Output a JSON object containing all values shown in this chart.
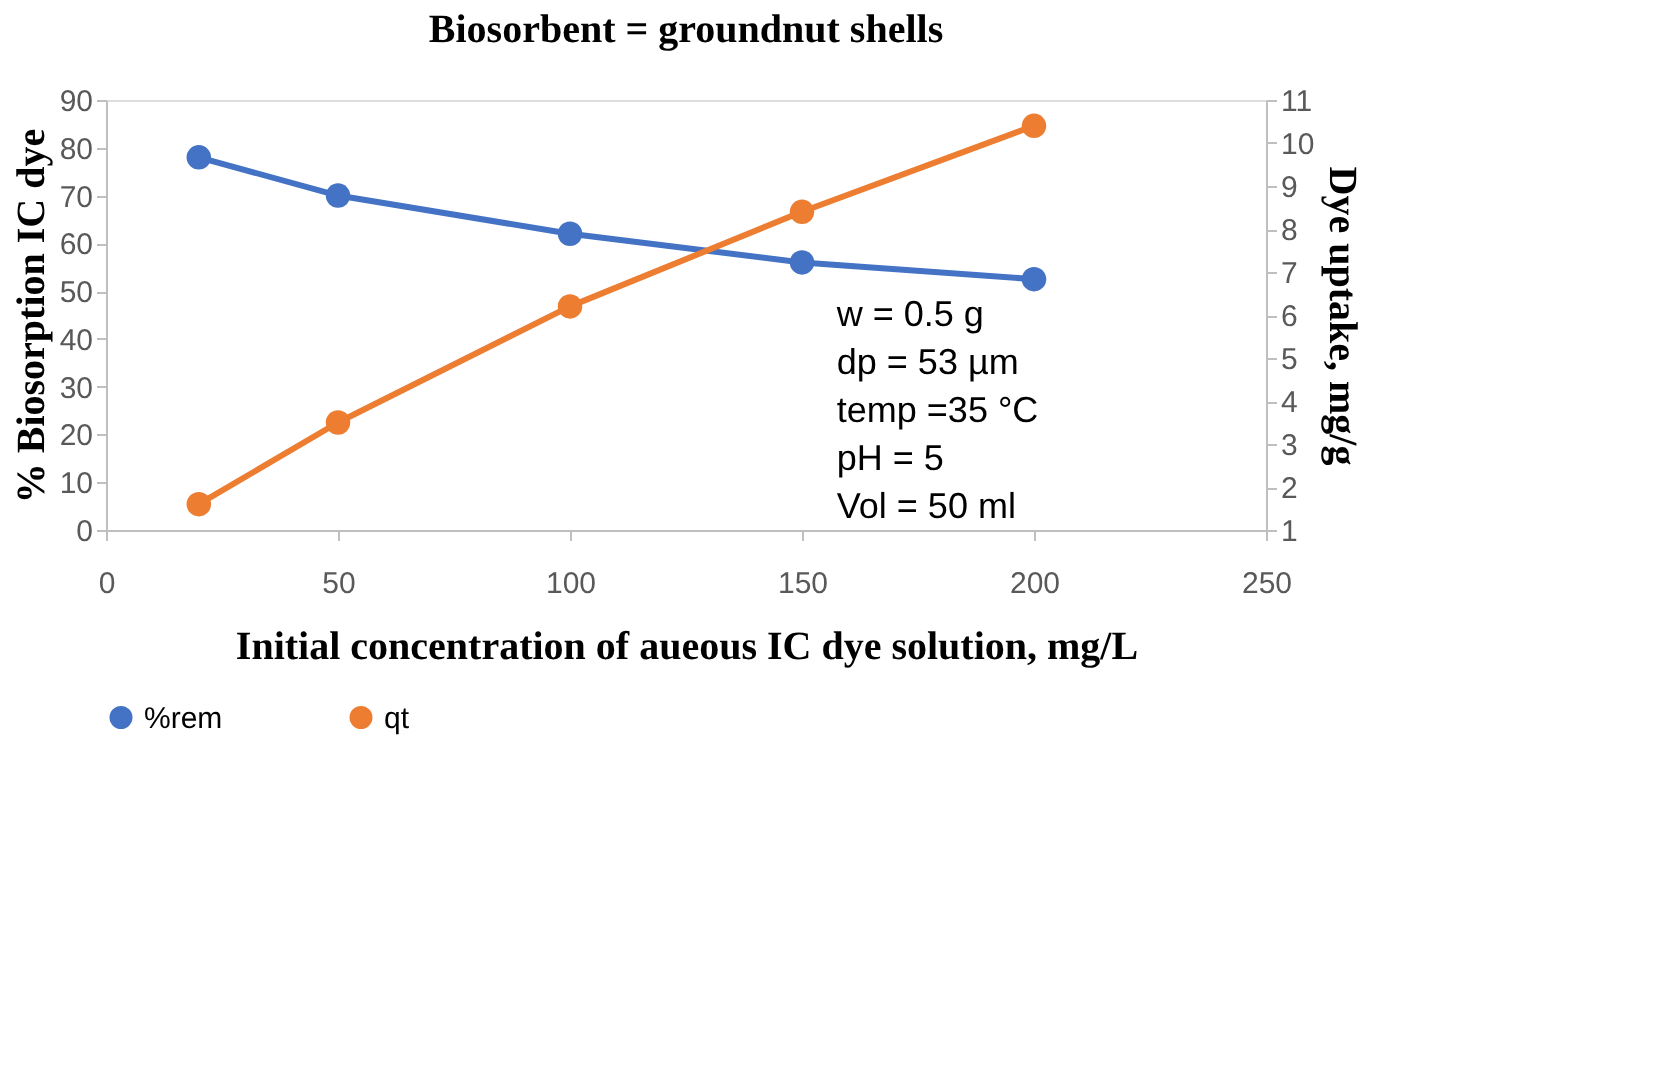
{
  "chart_data": {
    "type": "line",
    "title": "Biosorbent =  groundnut shells",
    "xlabel": "Initial concentration of aueous IC dye solution, mg/L",
    "ylabel": "% Biosorption IC dye",
    "y2label": "Dye uptake, mg/g",
    "x": [
      20,
      50,
      100,
      150,
      200
    ],
    "series": [
      {
        "name": "%rem",
        "color": "#4472c4",
        "values": [
          78,
          70,
          62,
          56,
          52.5
        ]
      },
      {
        "name": "qt",
        "color": "#ed7d31",
        "axis": "y2",
        "values": [
          1.6,
          3.5,
          6.2,
          8.4,
          10.4
        ]
      }
    ],
    "xlim": [
      0,
      250
    ],
    "xticks": [
      0,
      50,
      100,
      150,
      200,
      250
    ],
    "ylim": [
      0,
      90
    ],
    "yticks": [
      0,
      10,
      20,
      30,
      40,
      50,
      60,
      70,
      80,
      90
    ],
    "y2lim": [
      1,
      11
    ],
    "y2ticks": [
      1,
      2,
      3,
      4,
      5,
      6,
      7,
      8,
      9,
      10,
      11
    ],
    "annotations": [
      "w = 0.5 g",
      "dp = 53 µm",
      "temp =35 °C",
      "pH = 5",
      "Vol = 50 ml"
    ],
    "marker": "circle",
    "line_style": "solid",
    "legend": "bottom",
    "grid": false
  }
}
